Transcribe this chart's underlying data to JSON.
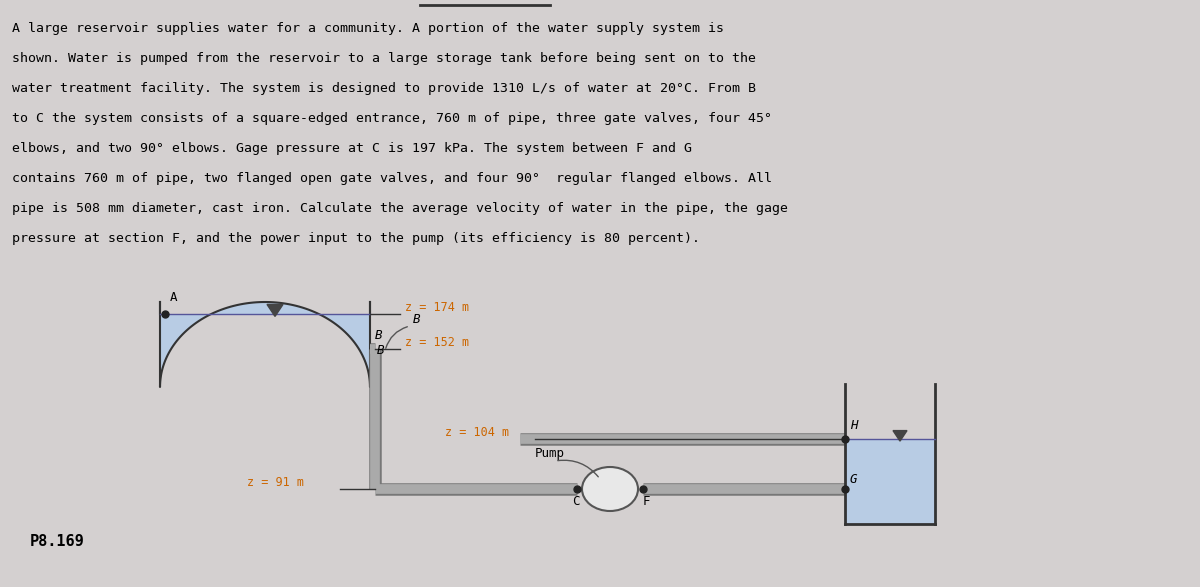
{
  "bg_color": "#d4d0d0",
  "text_color": "#000000",
  "label_color": "#cc6600",
  "water_color": "#b8cce4",
  "pipe_color": "#888888",
  "pipe_edge_color": "#555555",
  "title_line": "A large reservoir supplies water for a community. A portion of the water supply system is",
  "body_text": [
    "A large reservoir supplies water for a community. A portion of the water supply system is",
    "shown. Water is pumped from the reservoir to a large storage tank before being sent on to the",
    "water treatment facility. The system is designed to provide 1310 L/s of water at 20°C. From B",
    "to C the system consists of a square-edged entrance, 760 m of pipe, three gate valves, four 45°",
    "elbows, and two 90° elbows. Gage pressure at C is 197 kPa. The system between F and G",
    "contains 760 m of pipe, two flanged open gate valves, and four 90°  regular flanged elbows. All",
    "pipe is 508 mm diameter, cast iron. Calculate the average velocity of water in the pipe, the gage",
    "pressure at section F, and the power input to the pump (its efficiency is 80 percent)."
  ],
  "problem_number": "P8.169",
  "z_174": "z = 174 m",
  "z_152": "z = 152 m",
  "z_104": "z = 104 m",
  "z_91": "z = 91 m",
  "label_A": "A",
  "label_B": "B",
  "label_C": "C",
  "label_F": "F",
  "label_G": "G",
  "label_H": "H",
  "label_Pump": "Pump"
}
